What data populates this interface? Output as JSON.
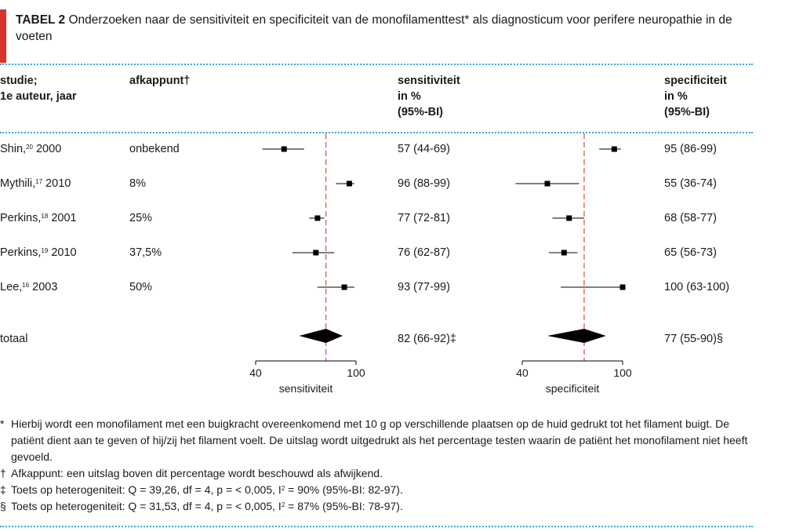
{
  "title": {
    "label": "TABEL 2",
    "text": "Onderzoeken naar de sensitiviteit en specificiteit van de monofilamenttest* als diagnosticum voor perifere neuropathie in de voeten"
  },
  "headers": {
    "study": "studie;\n1e auteur, jaar",
    "cutoff": "afkappunt†",
    "sensitivity": "sensitiviteit\nin %\n(95%-BI)",
    "specificity": "specificiteit\nin %\n(95%-BI)"
  },
  "rows": [
    {
      "name": "Shin,",
      "ref": "20",
      "year": " 2000",
      "cutoff": "onbekend",
      "sens_text": "57 (44-69)",
      "spec_text": "95 (86-99)"
    },
    {
      "name": "Mythili,",
      "ref": "17",
      "year": " 2010",
      "cutoff": "8%",
      "sens_text": "96 (88-99)",
      "spec_text": "55 (36-74)"
    },
    {
      "name": "Perkins,",
      "ref": "18",
      "year": " 2001",
      "cutoff": "25%",
      "sens_text": "77 (72-81)",
      "spec_text": "68 (58-77)"
    },
    {
      "name": "Perkins,",
      "ref": "19",
      "year": " 2010",
      "cutoff": "37,5%",
      "sens_text": "76 (62-87)",
      "spec_text": "65 (56-73)"
    },
    {
      "name": "Lee,",
      "ref": "16",
      "year": " 2003",
      "cutoff": "50%",
      "sens_text": "93 (77-99)",
      "spec_text": "100 (63-100)"
    }
  ],
  "total": {
    "label": "totaal",
    "sens_text": "82 (66-92)‡",
    "spec_text": "77 (55-90)§"
  },
  "chart_data": [
    {
      "type": "forest",
      "xlabel": "sensitiviteit",
      "xticks": [
        40,
        100
      ],
      "xlim": [
        40,
        100
      ],
      "reference_line": 82,
      "studies": [
        {
          "study": "Shin 2000",
          "estimate": 57,
          "lower": 44,
          "upper": 69
        },
        {
          "study": "Mythili 2010",
          "estimate": 96,
          "lower": 88,
          "upper": 99
        },
        {
          "study": "Perkins 2001",
          "estimate": 77,
          "lower": 72,
          "upper": 81
        },
        {
          "study": "Perkins 2010",
          "estimate": 76,
          "lower": 62,
          "upper": 87
        },
        {
          "study": "Lee 2003",
          "estimate": 93,
          "lower": 77,
          "upper": 99
        }
      ],
      "pooled": {
        "estimate": 82,
        "lower": 66,
        "upper": 92
      }
    },
    {
      "type": "forest",
      "xlabel": "specificiteit",
      "xticks": [
        40,
        100
      ],
      "xlim": [
        40,
        100
      ],
      "reference_line": 77,
      "studies": [
        {
          "study": "Shin 2000",
          "estimate": 95,
          "lower": 86,
          "upper": 99
        },
        {
          "study": "Mythili 2010",
          "estimate": 55,
          "lower": 36,
          "upper": 74
        },
        {
          "study": "Perkins 2001",
          "estimate": 68,
          "lower": 58,
          "upper": 77
        },
        {
          "study": "Perkins 2010",
          "estimate": 65,
          "lower": 56,
          "upper": 73
        },
        {
          "study": "Lee 2003",
          "estimate": 100,
          "lower": 63,
          "upper": 100
        }
      ],
      "pooled": {
        "estimate": 77,
        "lower": 55,
        "upper": 90
      }
    }
  ],
  "notes": {
    "star_sym": "*",
    "star": "Hierbij wordt een monofilament met een buigkracht overeenkomend met 10 g op verschillende plaatsen op de huid gedrukt tot het filament buigt. De patiënt dient aan te geven of hij/zij het filament voelt. De uitslag wordt uitgedrukt als het percentage testen waarin de patiënt het monofilament niet heeft gevoeld.",
    "dagger_sym": "†",
    "dagger": "Afkappunt: een uitslag boven dit percentage wordt beschouwd als afwijkend.",
    "ddagger_sym": "‡",
    "ddagger_a": "Toets op heterogeniteit: Q = 39,26, df = 4, p = < 0,005, I",
    "ddagger_sup": "2",
    "ddagger_b": " = 90% (95%-BI: 82-97).",
    "section_sym": "§",
    "section_a": "Toets op heterogeniteit: Q = 31,53, df = 4, p = < 0,005, I",
    "section_sup": "2",
    "section_b": " = 87% (95%-BI: 78-97)."
  },
  "colors": {
    "accent": "#d9332b",
    "rule": "#3aa7d6",
    "reference": "#e0574f",
    "marks": "#000000"
  }
}
